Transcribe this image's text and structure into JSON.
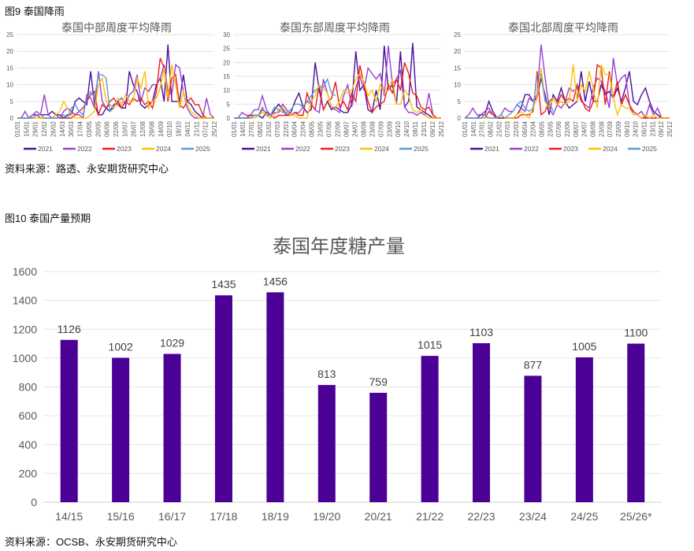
{
  "fig9": {
    "caption": "图9 泰国降雨",
    "source": "资料来源：路透、永安期货研究中心"
  },
  "fig10": {
    "caption": "图10 泰国产量预期",
    "source": "资料来源：OCSB、永安期货研究中心"
  },
  "colors": {
    "2021": "#4b0f9c",
    "2022": "#9b3fd0",
    "2023": "#ee1c1c",
    "2024": "#ffc000",
    "2025": "#5b9bd5",
    "bar": "#4b0096"
  },
  "chart_data": [
    {
      "type": "line",
      "title": "泰国中部周度平均降雨",
      "ylim": [
        0,
        25
      ],
      "yticks": [
        0,
        5,
        10,
        15,
        20,
        25
      ],
      "xticks": [
        "01/01",
        "15/01",
        "29/01",
        "12/02",
        "26/02",
        "14/03",
        "30/03",
        "17/04",
        "03/05",
        "20/05",
        "06/06",
        "22/06",
        "10/07",
        "26/07",
        "12/08",
        "29/08",
        "14/09",
        "02/10",
        "18/10",
        "04/11",
        "21/11",
        "07/12",
        "25/12"
      ],
      "legend": "bottom",
      "series": [
        {
          "name": "2021",
          "values": [
            0,
            0,
            0,
            0,
            1,
            1,
            1,
            1,
            1,
            2,
            1,
            1,
            0,
            1,
            1,
            5,
            6,
            5,
            4,
            14,
            4,
            1,
            1,
            3,
            2,
            4,
            5,
            3,
            3,
            14,
            10,
            8,
            4,
            3,
            4,
            5,
            10,
            12,
            5,
            22,
            5,
            5,
            5,
            13,
            5,
            4,
            2,
            1,
            0,
            0,
            0,
            0
          ]
        },
        {
          "name": "2022",
          "values": [
            0,
            0,
            2,
            0,
            1,
            2,
            1,
            7,
            1,
            0,
            1,
            0,
            2,
            3,
            2,
            1,
            1,
            0,
            7,
            6,
            3,
            14,
            5,
            3,
            4,
            3,
            5,
            6,
            4,
            7,
            8,
            13,
            5,
            9,
            8,
            10,
            10,
            12,
            16,
            8,
            7,
            16,
            15,
            8,
            3,
            1,
            0,
            0,
            0,
            6,
            1,
            0
          ]
        },
        {
          "name": "2023",
          "values": [
            0,
            0,
            0,
            0,
            0,
            1,
            0,
            0,
            0,
            0,
            0,
            0,
            0,
            0,
            0,
            1,
            2,
            3,
            5,
            7,
            8,
            1,
            4,
            3,
            5,
            6,
            4,
            3,
            5,
            4,
            6,
            5,
            6,
            4,
            5,
            3,
            8,
            18,
            15,
            5,
            12,
            13,
            4,
            3,
            5,
            6,
            4,
            4,
            1,
            0,
            0,
            0
          ]
        },
        {
          "name": "2024",
          "values": [
            0,
            0,
            0,
            0,
            0,
            0,
            0,
            0,
            0,
            0,
            1,
            2,
            5,
            3,
            1,
            0,
            0,
            0,
            0,
            1,
            2,
            10,
            12,
            5,
            4,
            3,
            6,
            4,
            7,
            5,
            5,
            12,
            9,
            14,
            3,
            5,
            6,
            9,
            15,
            6,
            16,
            10,
            3,
            8,
            4,
            2,
            1,
            0,
            0,
            0,
            0,
            0
          ]
        },
        {
          "name": "2025",
          "values": [
            0,
            0,
            0,
            0,
            0,
            1,
            1,
            0,
            0,
            0,
            0,
            0,
            1,
            0,
            3,
            4,
            2,
            1,
            6,
            8,
            6,
            13,
            13,
            12,
            2,
            3
          ]
        }
      ]
    },
    {
      "type": "line",
      "title": "泰国东部周度平均降雨",
      "ylim": [
        0,
        30
      ],
      "yticks": [
        0,
        5,
        10,
        15,
        20,
        25,
        30
      ],
      "xticks": [
        "01/01",
        "14/01",
        "27/01",
        "08/02",
        "21/02",
        "07/03",
        "22/03",
        "06/04",
        "22/04",
        "08/05",
        "23/05",
        "07/06",
        "22/06",
        "08/07",
        "24/07",
        "08/08",
        "23/08",
        "07/09",
        "23/09",
        "09/10",
        "24/10",
        "08/11",
        "23/11",
        "09/12",
        "25/12"
      ],
      "legend": "bottom",
      "series": [
        {
          "name": "2021",
          "values": [
            0,
            0,
            0,
            0,
            0,
            1,
            1,
            0,
            2,
            1,
            3,
            5,
            3,
            1,
            2,
            6,
            9,
            4,
            2,
            3,
            20,
            10,
            3,
            6,
            3,
            4,
            3,
            2,
            2,
            5,
            24,
            10,
            12,
            3,
            2,
            10,
            3,
            26,
            10,
            12,
            5,
            24,
            4,
            6,
            27,
            4,
            3,
            2,
            1,
            0,
            0,
            0
          ]
        },
        {
          "name": "2022",
          "values": [
            0,
            0,
            2,
            1,
            1,
            3,
            3,
            8,
            3,
            1,
            2,
            2,
            5,
            3,
            1,
            2,
            2,
            4,
            6,
            5,
            3,
            2,
            14,
            9,
            4,
            3,
            2,
            8,
            12,
            4,
            11,
            15,
            10,
            18,
            16,
            14,
            16,
            8,
            26,
            12,
            14,
            17,
            4,
            2,
            2,
            1,
            2,
            1,
            9,
            1,
            0,
            0
          ]
        },
        {
          "name": "2023",
          "values": [
            0,
            0,
            0,
            0,
            1,
            1,
            1,
            3,
            2,
            1,
            0,
            1,
            1,
            1,
            1,
            2,
            1,
            1,
            9,
            5,
            3,
            12,
            3,
            6,
            7,
            13,
            4,
            6,
            3,
            9,
            6,
            19,
            12,
            6,
            2,
            4,
            5,
            6,
            12,
            9,
            14,
            10,
            20,
            16,
            9,
            8,
            4,
            3,
            4,
            1,
            0,
            0
          ]
        },
        {
          "name": "2024",
          "values": [
            0,
            0,
            0,
            0,
            0,
            0,
            1,
            2,
            1,
            0,
            1,
            3,
            4,
            2,
            1,
            1,
            0,
            0,
            0,
            6,
            8,
            12,
            11,
            9,
            4,
            4,
            6,
            10,
            9,
            10,
            14,
            16,
            13,
            8,
            10,
            6,
            12,
            9,
            10,
            14,
            5,
            5,
            10,
            8,
            3,
            2,
            3,
            1,
            0,
            0,
            0,
            0
          ]
        },
        {
          "name": "2025",
          "values": [
            0,
            0,
            0,
            0,
            0,
            1,
            1,
            4,
            1,
            1,
            4,
            3,
            2,
            2,
            3,
            5,
            5,
            4,
            6,
            8,
            10,
            11,
            11,
            14,
            9,
            8
          ]
        }
      ]
    },
    {
      "type": "line",
      "title": "泰国北部周度平均降雨",
      "ylim": [
        0,
        25
      ],
      "yticks": [
        0,
        5,
        10,
        15,
        20,
        25
      ],
      "xticks": [
        "01/01",
        "14/01",
        "27/01",
        "08/02",
        "21/02",
        "07/03",
        "22/03",
        "06/04",
        "22/04",
        "08/05",
        "23/05",
        "07/06",
        "22/06",
        "08/07",
        "24/07",
        "08/08",
        "23/08",
        "07/09",
        "23/09",
        "09/10",
        "24/10",
        "06/11",
        "23/11",
        "09/12",
        "25/12"
      ],
      "legend": "bottom",
      "series": [
        {
          "name": "2021",
          "values": [
            0,
            0,
            0,
            0,
            1,
            1,
            5,
            2,
            0,
            0,
            0,
            0,
            0,
            1,
            3,
            7,
            7,
            5,
            6,
            12,
            7,
            1,
            7,
            5,
            9,
            5,
            3,
            4,
            5,
            14,
            5,
            11,
            5,
            5,
            10,
            7,
            8,
            6,
            9,
            5,
            9,
            14,
            5,
            4,
            7,
            9,
            5,
            2,
            1,
            0,
            0,
            0
          ]
        },
        {
          "name": "2022",
          "values": [
            0,
            1,
            3,
            1,
            1,
            2,
            3,
            1,
            0,
            1,
            3,
            2,
            2,
            4,
            3,
            2,
            6,
            5,
            7,
            22,
            12,
            3,
            1,
            4,
            3,
            5,
            9,
            8,
            9,
            5,
            4,
            3,
            9,
            12,
            11,
            8,
            3,
            18,
            10,
            12,
            13,
            4,
            1,
            1,
            2,
            0,
            4,
            1,
            3,
            0,
            0,
            0
          ]
        },
        {
          "name": "2023",
          "values": [
            0,
            0,
            0,
            0,
            0,
            0,
            2,
            1,
            0,
            0,
            0,
            0,
            0,
            0,
            1,
            1,
            1,
            2,
            14,
            1,
            2,
            5,
            6,
            4,
            7,
            5,
            6,
            5,
            10,
            6,
            3,
            2,
            5,
            16,
            15,
            4,
            14,
            6,
            11,
            4,
            7,
            4,
            2,
            1,
            0,
            0,
            0,
            0,
            0,
            0,
            0,
            0
          ]
        },
        {
          "name": "2024",
          "values": [
            0,
            0,
            0,
            0,
            0,
            0,
            0,
            0,
            0,
            1,
            0,
            0,
            0,
            1,
            2,
            1,
            0,
            3,
            6,
            15,
            5,
            3,
            6,
            4,
            5,
            4,
            5,
            16,
            5,
            10,
            8,
            14,
            9,
            3,
            16,
            13,
            13,
            6,
            1,
            4,
            3,
            3,
            1,
            1,
            0,
            1,
            0,
            1,
            0,
            0,
            0,
            0
          ]
        },
        {
          "name": "2025",
          "values": [
            0,
            0,
            0,
            0,
            0,
            1,
            0,
            0,
            0,
            1,
            0,
            1,
            2,
            4,
            5,
            3,
            2,
            3,
            13,
            13,
            5,
            5,
            2
          ]
        }
      ]
    },
    {
      "type": "bar",
      "title": "泰国年度糖产量",
      "categories": [
        "14/15",
        "15/16",
        "16/17",
        "17/18",
        "18/19",
        "19/20",
        "20/21",
        "21/22",
        "22/23",
        "23/24",
        "24/25",
        "25/26*"
      ],
      "values": [
        1126,
        1002,
        1029,
        1435,
        1456,
        813,
        759,
        1015,
        1103,
        877,
        1005,
        1100
      ],
      "ylim": [
        0,
        1600
      ],
      "yticks": [
        0,
        200,
        400,
        600,
        800,
        1000,
        1200,
        1400,
        1600
      ],
      "grid": true
    }
  ]
}
